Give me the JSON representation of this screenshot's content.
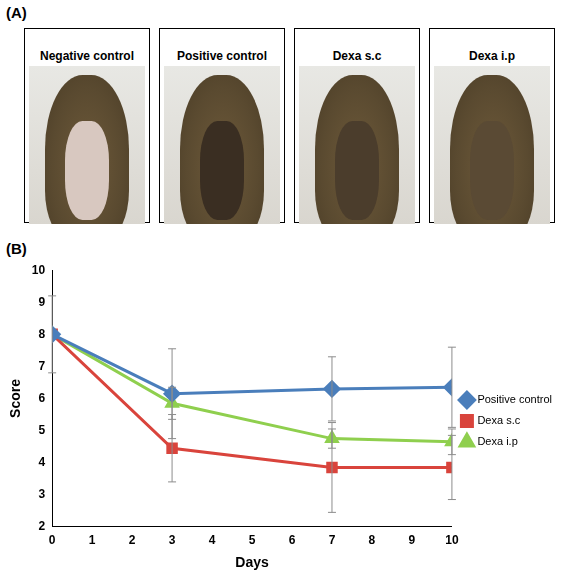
{
  "panel_a": {
    "label": "(A)",
    "captions": [
      "Negative control",
      "Positive control",
      "Dexa s.c",
      "Dexa i.p"
    ]
  },
  "panel_b": {
    "label": "(B)"
  },
  "chart_data": {
    "type": "line",
    "x_label": "Days",
    "y_label": "Score",
    "x": [
      0,
      3,
      7,
      10
    ],
    "xlim": [
      0,
      10
    ],
    "xticks": [
      0,
      1,
      2,
      3,
      4,
      5,
      6,
      7,
      8,
      9,
      10
    ],
    "ylim": [
      2,
      10
    ],
    "yticks": [
      2,
      3,
      4,
      5,
      6,
      7,
      8,
      9,
      10
    ],
    "grid": false,
    "legend": "right",
    "series": [
      {
        "name": "Positive control",
        "color": "#4a7ebb",
        "marker": "diamond",
        "values": [
          8,
          6.15,
          6.3,
          6.35
        ],
        "errors": [
          1.2,
          1.4,
          1.0,
          1.25
        ]
      },
      {
        "name": "Dexa s.c",
        "color": "#d9443c",
        "marker": "square",
        "values": [
          8,
          4.45,
          3.85,
          3.85
        ],
        "errors": [
          0,
          1.05,
          1.4,
          1.0
        ]
      },
      {
        "name": "Dexa i.p",
        "color": "#8fcf4e",
        "marker": "triangle",
        "values": [
          8,
          5.85,
          4.75,
          4.65
        ],
        "errors": [
          0,
          0.5,
          0.3,
          0.4
        ]
      }
    ]
  }
}
